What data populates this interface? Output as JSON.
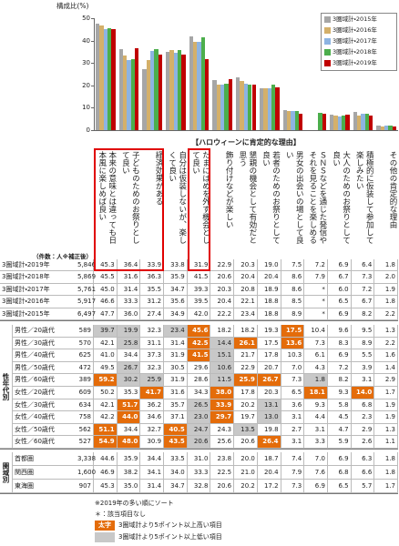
{
  "chart_data": {
    "type": "bar",
    "y_label": "構成比(%)",
    "ylim": [
      0,
      50
    ],
    "yticks": [
      0,
      10,
      20,
      30,
      40,
      50
    ],
    "series": [
      {
        "name": "3圏域計・2015年",
        "color": "#a6a6a6",
        "values": [
          47.7,
          36.0,
          27.4,
          34.9,
          42.0,
          22.2,
          23.4,
          18.8,
          8.9,
          null,
          6.9,
          8.2,
          2.2
        ]
      },
      {
        "name": "3圏域計・2016年",
        "color": "#d4b06a",
        "values": [
          46.6,
          33.3,
          31.2,
          35.6,
          39.5,
          20.4,
          22.1,
          18.8,
          8.5,
          null,
          6.5,
          6.7,
          1.8
        ]
      },
      {
        "name": "3圏域計・2017年",
        "color": "#8db4e2",
        "values": [
          45.0,
          31.4,
          35.5,
          34.7,
          39.3,
          20.3,
          20.8,
          18.9,
          8.6,
          null,
          6.0,
          7.2,
          1.9
        ]
      },
      {
        "name": "3圏域計・2018年",
        "color": "#4cae4c",
        "values": [
          45.5,
          31.6,
          36.3,
          35.9,
          41.5,
          20.6,
          20.4,
          20.4,
          8.6,
          7.9,
          6.7,
          7.3,
          2.0
        ]
      },
      {
        "name": "3圏域計・2019年",
        "color": "#c00000",
        "values": [
          45.3,
          36.4,
          33.9,
          33.8,
          31.9,
          22.9,
          20.3,
          19.0,
          7.5,
          7.2,
          6.9,
          6.4,
          1.8
        ]
      }
    ]
  },
  "table": {
    "heading": "【ハロウィーンに肯定的な理由】",
    "count_note": "（件数：人※補正後）",
    "columns": [
      "本来の意味とは違っても日本風に楽しめば良い",
      "子どものためのお祭りとして良い",
      "経済効果がある",
      "自分は仮装しないが、楽しくて良い",
      "たまにはめを外す機会として良い",
      "飾り付けなどが楽しい",
      "懇親の機会として有効だと思う",
      "若者のためのお祭りとして良い",
      "男女の出会いの場として良い",
      "ＳＮＳなどを通じた発信やそれを見ることを楽しめる",
      "大人のためのお祭りとして良い",
      "積極的に仮装して参加して楽しみたい",
      "その他の肯定的な理由"
    ],
    "threshold": 5,
    "groups": [
      {
        "rows": [
          {
            "label": "3圏域計・2019年",
            "count": "5,846",
            "values": [
              "45.3",
              "36.4",
              "33.9",
              "33.8",
              "31.9",
              "22.9",
              "20.3",
              "19.0",
              "7.5",
              "7.2",
              "6.9",
              "6.4",
              "1.8"
            ]
          },
          {
            "label": "3圏域計・2018年",
            "count": "5,869",
            "values": [
              "45.5",
              "31.6",
              "36.3",
              "35.9",
              "41.5",
              "20.6",
              "20.4",
              "20.4",
              "8.6",
              "7.9",
              "6.7",
              "7.3",
              "2.0"
            ]
          },
          {
            "label": "3圏域計・2017年",
            "count": "5,761",
            "values": [
              "45.0",
              "31.4",
              "35.5",
              "34.7",
              "39.3",
              "20.3",
              "20.8",
              "18.9",
              "8.6",
              "*",
              "6.0",
              "7.2",
              "1.9"
            ]
          },
          {
            "label": "3圏域計・2016年",
            "count": "5,917",
            "values": [
              "46.6",
              "33.3",
              "31.2",
              "35.6",
              "39.5",
              "20.4",
              "22.1",
              "18.8",
              "8.5",
              "*",
              "6.5",
              "6.7",
              "1.8"
            ]
          },
          {
            "label": "3圏域計・2015年",
            "count": "6,497",
            "values": [
              "47.7",
              "36.0",
              "27.4",
              "34.9",
              "42.0",
              "22.2",
              "23.4",
              "18.8",
              "8.9",
              "*",
              "6.9",
              "8.2",
              "2.2"
            ]
          }
        ]
      },
      {
        "label": "性年代別",
        "rows": [
          {
            "label": "男性／20歳代",
            "count": "589",
            "values": [
              "39.7",
              "19.9",
              "32.3",
              "23.4",
              "45.6",
              "18.2",
              "18.2",
              "19.3",
              "17.5",
              "10.4",
              "9.6",
              "9.5",
              "1.3"
            ]
          },
          {
            "label": "男性／30歳代",
            "count": "570",
            "values": [
              "42.1",
              "25.8",
              "31.1",
              "31.4",
              "42.5",
              "14.4",
              "26.1",
              "17.5",
              "13.6",
              "7.3",
              "8.3",
              "8.9",
              "2.2"
            ]
          },
          {
            "label": "男性／40歳代",
            "count": "625",
            "values": [
              "41.0",
              "34.4",
              "37.3",
              "31.9",
              "41.5",
              "15.1",
              "21.7",
              "17.8",
              "10.3",
              "6.1",
              "6.9",
              "5.5",
              "1.6"
            ]
          },
          {
            "label": "男性／50歳代",
            "count": "472",
            "values": [
              "49.5",
              "26.7",
              "32.3",
              "30.5",
              "29.6",
              "10.6",
              "22.9",
              "20.7",
              "7.0",
              "4.3",
              "7.2",
              "3.9",
              "1.4"
            ]
          },
          {
            "label": "男性／60歳代",
            "count": "389",
            "values": [
              "59.2",
              "30.2",
              "25.9",
              "31.9",
              "28.6",
              "11.5",
              "25.9",
              "26.7",
              "7.3",
              "1.8",
              "8.2",
              "3.1",
              "2.9"
            ]
          },
          {
            "label": "女性／20歳代",
            "count": "609",
            "values": [
              "50.2",
              "35.3",
              "41.7",
              "31.6",
              "34.3",
              "38.0",
              "17.8",
              "20.3",
              "6.5",
              "18.1",
              "9.3",
              "14.0",
              "1.7"
            ]
          },
          {
            "label": "女性／30歳代",
            "count": "634",
            "values": [
              "42.1",
              "51.7",
              "36.2",
              "35.7",
              "26.5",
              "33.9",
              "20.2",
              "13.1",
              "3.6",
              "9.3",
              "5.8",
              "6.8",
              "1.9"
            ]
          },
          {
            "label": "女性／40歳代",
            "count": "758",
            "values": [
              "42.2",
              "44.0",
              "34.6",
              "37.1",
              "23.0",
              "29.7",
              "19.7",
              "13.0",
              "3.1",
              "4.4",
              "4.5",
              "2.3",
              "1.9"
            ]
          },
          {
            "label": "女性／50歳代",
            "count": "562",
            "values": [
              "51.1",
              "34.4",
              "32.7",
              "40.5",
              "24.7",
              "24.3",
              "13.5",
              "19.8",
              "2.7",
              "3.1",
              "4.7",
              "2.9",
              "1.3"
            ]
          },
          {
            "label": "女性／60歳代",
            "count": "527",
            "values": [
              "54.9",
              "48.0",
              "30.9",
              "43.5",
              "20.6",
              "25.6",
              "20.6",
              "26.4",
              "3.1",
              "3.3",
              "5.9",
              "2.6",
              "1.1"
            ]
          }
        ]
      },
      {
        "label": "圏域別",
        "rows": [
          {
            "label": "首都圏",
            "count": "3,338",
            "values": [
              "44.6",
              "35.9",
              "34.4",
              "33.5",
              "31.0",
              "23.8",
              "20.0",
              "18.7",
              "7.4",
              "7.0",
              "6.9",
              "6.3",
              "1.8"
            ]
          },
          {
            "label": "関西圏",
            "count": "1,600",
            "values": [
              "46.9",
              "38.2",
              "34.1",
              "34.0",
              "33.3",
              "22.5",
              "21.0",
              "20.4",
              "7.9",
              "7.6",
              "6.8",
              "6.6",
              "1.8"
            ]
          },
          {
            "label": "東海圏",
            "count": "907",
            "values": [
              "45.3",
              "35.0",
              "31.4",
              "34.7",
              "32.8",
              "20.6",
              "20.2",
              "17.2",
              "7.3",
              "6.9",
              "6.5",
              "5.7",
              "1.7"
            ]
          }
        ]
      }
    ],
    "notes": [
      "※2019年の多い順にソート",
      "＊：該当項目なし"
    ],
    "key": [
      {
        "swatch": "太字",
        "text": "3圏域計より5ポイント以上高い項目",
        "color": "#e46c0a"
      },
      {
        "text": "3圏域計より5ポイント以上低い項目",
        "color": "#c8c8c8"
      }
    ]
  }
}
